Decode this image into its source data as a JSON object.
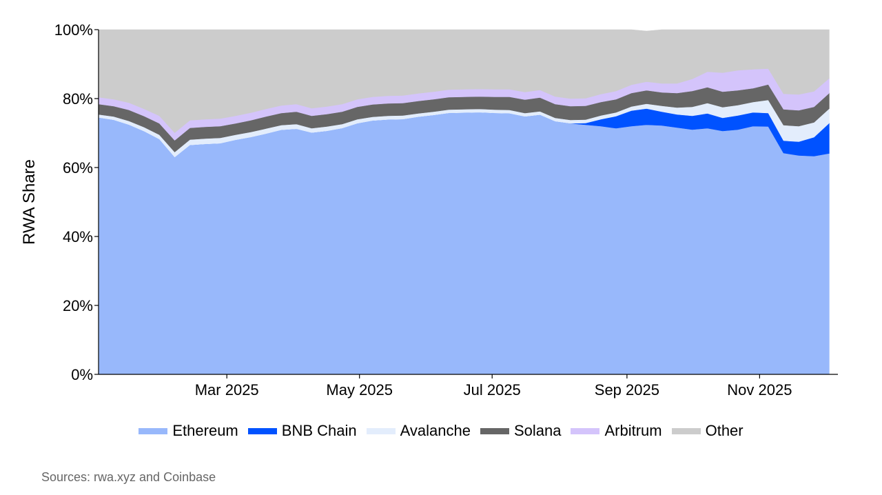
{
  "chart_data": {
    "type": "area",
    "stacked": true,
    "ylabel": "RWA Share",
    "ylim": [
      0,
      100
    ],
    "yticks": [
      "0%",
      "20%",
      "40%",
      "60%",
      "80%",
      "100%"
    ],
    "xticks": [
      "Mar 2025",
      "May 2025",
      "Jul 2025",
      "Sep 2025",
      "Nov 2025"
    ],
    "x": [
      "2025-01-01",
      "2025-01-08",
      "2025-01-15",
      "2025-01-22",
      "2025-01-29",
      "2025-02-05",
      "2025-02-12",
      "2025-02-19",
      "2025-02-26",
      "2025-03-05",
      "2025-03-12",
      "2025-03-19",
      "2025-03-26",
      "2025-04-02",
      "2025-04-09",
      "2025-04-16",
      "2025-04-23",
      "2025-04-30",
      "2025-05-07",
      "2025-05-14",
      "2025-05-21",
      "2025-05-28",
      "2025-06-04",
      "2025-06-11",
      "2025-06-18",
      "2025-06-25",
      "2025-07-02",
      "2025-07-09",
      "2025-07-16",
      "2025-07-23",
      "2025-07-30",
      "2025-08-06",
      "2025-08-13",
      "2025-08-20",
      "2025-08-27",
      "2025-09-03",
      "2025-09-10",
      "2025-09-17",
      "2025-09-24",
      "2025-10-01",
      "2025-10-08",
      "2025-10-15",
      "2025-10-22",
      "2025-10-29",
      "2025-11-05",
      "2025-11-12",
      "2025-11-19",
      "2025-11-26",
      "2025-12-03"
    ],
    "series": [
      {
        "name": "Ethereum",
        "color": "#98b8fb",
        "values": [
          74.5,
          73.8,
          72.4,
          70.5,
          68.2,
          63.0,
          66.5,
          66.8,
          67.0,
          68.0,
          68.8,
          69.8,
          70.9,
          71.2,
          70.1,
          70.6,
          71.4,
          72.8,
          73.6,
          73.9,
          74.0,
          74.7,
          75.2,
          75.8,
          75.9,
          76.0,
          75.8,
          75.7,
          74.8,
          75.3,
          73.4,
          72.8,
          72.4,
          72.0,
          71.4,
          72.0,
          72.4,
          72.2,
          71.6,
          71.0,
          71.4,
          70.6,
          71.0,
          72.0,
          71.9,
          64.2,
          63.5,
          63.3,
          64.1
        ]
      },
      {
        "name": "BNB Chain",
        "color": "#0052ff",
        "values": [
          0,
          0,
          0,
          0,
          0,
          0,
          0,
          0,
          0,
          0,
          0,
          0,
          0,
          0,
          0,
          0,
          0,
          0,
          0,
          0,
          0,
          0,
          0,
          0,
          0,
          0,
          0,
          0,
          0,
          0,
          0,
          0,
          0.5,
          2.0,
          3.5,
          4.5,
          4.7,
          4.0,
          3.8,
          4.0,
          4.3,
          3.8,
          4.1,
          4.0,
          3.9,
          3.6,
          4.0,
          5.5,
          8.8
        ]
      },
      {
        "name": "Avalanche",
        "color": "#e3edfc",
        "values": [
          0.9,
          1.0,
          1.1,
          1.2,
          1.3,
          1.5,
          1.6,
          1.6,
          1.6,
          1.5,
          1.5,
          1.5,
          1.4,
          1.4,
          1.3,
          1.3,
          1.2,
          1.2,
          1.1,
          1.1,
          1.1,
          1.0,
          1.0,
          1.0,
          1.0,
          1.0,
          1.0,
          1.0,
          1.0,
          1.0,
          1.0,
          1.0,
          1.0,
          1.1,
          1.1,
          1.2,
          1.4,
          1.7,
          2.0,
          2.6,
          3.0,
          3.1,
          3.0,
          3.0,
          3.8,
          4.5,
          4.5,
          4.3,
          4.2
        ]
      },
      {
        "name": "Solana",
        "color": "#666666",
        "values": [
          3.0,
          3.0,
          3.2,
          3.2,
          3.3,
          3.4,
          3.4,
          3.4,
          3.4,
          3.3,
          3.4,
          3.5,
          3.5,
          3.6,
          3.6,
          3.6,
          3.6,
          3.6,
          3.6,
          3.6,
          3.6,
          3.6,
          3.6,
          3.6,
          3.6,
          3.6,
          3.7,
          3.8,
          3.9,
          4.0,
          4.0,
          4.0,
          4.0,
          3.9,
          3.8,
          3.9,
          3.9,
          3.9,
          4.2,
          4.6,
          4.6,
          4.5,
          4.3,
          4.0,
          4.5,
          4.6,
          4.6,
          4.5,
          4.5
        ]
      },
      {
        "name": "Arbitrum",
        "color": "#d4c4fb",
        "values": [
          2.0,
          2.0,
          2.1,
          2.1,
          2.2,
          2.2,
          2.2,
          2.2,
          2.2,
          2.2,
          2.2,
          2.2,
          2.2,
          2.2,
          2.2,
          2.2,
          2.2,
          2.2,
          2.2,
          2.2,
          2.2,
          2.2,
          2.2,
          2.2,
          2.2,
          2.2,
          2.2,
          2.2,
          2.2,
          2.2,
          2.2,
          2.2,
          2.2,
          2.3,
          2.4,
          2.4,
          2.5,
          2.6,
          2.8,
          3.5,
          4.5,
          5.5,
          5.8,
          5.5,
          4.6,
          4.5,
          4.6,
          4.5,
          4.3
        ]
      },
      {
        "name": "Other",
        "color": "#cccccc",
        "values": [
          19.6,
          20.2,
          21.2,
          23.0,
          25.0,
          29.9,
          26.3,
          26.0,
          25.8,
          25.0,
          24.1,
          23.0,
          22.0,
          21.6,
          22.8,
          22.3,
          21.6,
          20.2,
          19.5,
          19.2,
          19.1,
          18.5,
          18.0,
          17.4,
          17.3,
          17.2,
          17.3,
          17.3,
          18.1,
          17.5,
          19.4,
          20.0,
          19.9,
          18.7,
          17.8,
          16.0,
          14.7,
          15.6,
          15.6,
          14.3,
          12.2,
          12.5,
          11.8,
          11.5,
          11.3,
          18.6,
          18.8,
          17.9,
          14.1
        ]
      }
    ]
  },
  "source_note": "Sources: rwa.xyz and Coinbase"
}
